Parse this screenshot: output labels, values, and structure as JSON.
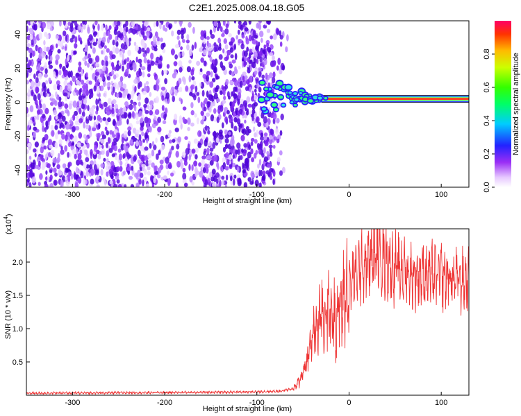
{
  "title": "C2E1.2025.008.04.18.G05",
  "colors": {
    "snr_line": "#ee3333",
    "spec_dots": "#7a1ff0",
    "ridge": "#ff2222"
  },
  "chart_data": [
    {
      "type": "heatmap",
      "xlabel": "Height of straight line (km)",
      "ylabel": "Frequency (Hz)",
      "xlim": [
        -350,
        130
      ],
      "ylim": [
        -50,
        48
      ],
      "xticks": [
        -300,
        -200,
        -100,
        0,
        100
      ],
      "yticks": [
        -40,
        -20,
        0,
        20,
        40
      ],
      "noise_extent_km": [
        -350,
        -75
      ],
      "ridge": {
        "x_start": -30,
        "x_end": 130,
        "frequency_hz": 2,
        "amplitude": 0.95
      },
      "colorbar": {
        "label": "Normalized spectral amplitude",
        "range": [
          0,
          1
        ],
        "ticks": [
          "0.0",
          "0.2",
          "0.4",
          "0.6",
          "0.8"
        ]
      }
    },
    {
      "type": "line",
      "xlabel": "Height of straight line (km)",
      "ylabel": "SNR (10 * v/v)",
      "y_multiplier": "(x10",
      "y_multiplier_exp": "4",
      "xlim": [
        -350,
        130
      ],
      "ylim": [
        0,
        2.5
      ],
      "xticks": [
        -300,
        -200,
        -100,
        0,
        100
      ],
      "yticks": [
        "0.5",
        "1.0",
        "1.5",
        "2.0"
      ],
      "series": [
        {
          "name": "",
          "x": [
            -350,
            -200,
            -100,
            -75,
            -60,
            -55,
            -50,
            -45,
            -40,
            -35,
            -30,
            -25,
            -20,
            -15,
            -10,
            -5,
            0,
            5,
            10,
            15,
            20,
            25,
            30,
            35,
            40,
            45,
            50,
            60,
            70,
            80,
            90,
            100,
            110,
            120,
            130
          ],
          "y": [
            0.03,
            0.04,
            0.05,
            0.06,
            0.1,
            0.18,
            0.35,
            0.55,
            0.85,
            1.05,
            1.15,
            1.25,
            1.25,
            1.15,
            1.3,
            1.5,
            1.6,
            1.75,
            1.85,
            1.95,
            2.0,
            2.05,
            2.1,
            2.1,
            2.0,
            1.95,
            1.9,
            1.85,
            1.8,
            1.82,
            1.8,
            1.78,
            1.75,
            1.72,
            1.7
          ]
        }
      ]
    }
  ]
}
